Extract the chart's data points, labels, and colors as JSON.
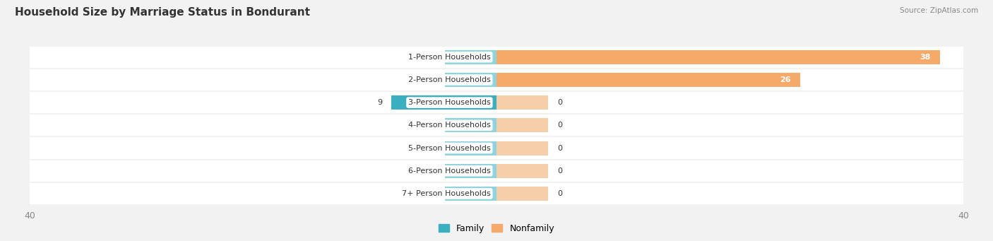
{
  "title": "Household Size by Marriage Status in Bondurant",
  "source": "Source: ZipAtlas.com",
  "categories": [
    "7+ Person Households",
    "6-Person Households",
    "5-Person Households",
    "4-Person Households",
    "3-Person Households",
    "2-Person Households",
    "1-Person Households"
  ],
  "family_values": [
    0,
    0,
    0,
    0,
    9,
    0,
    0
  ],
  "nonfamily_values": [
    0,
    0,
    0,
    0,
    0,
    26,
    38
  ],
  "family_color": "#3aafbf",
  "family_color_light": "#8dd4de",
  "nonfamily_color": "#f5aa6a",
  "nonfamily_color_light": "#f5cfaa",
  "axis_limit": 40,
  "bg_color": "#f2f2f2",
  "row_bg_color": "#ffffff"
}
